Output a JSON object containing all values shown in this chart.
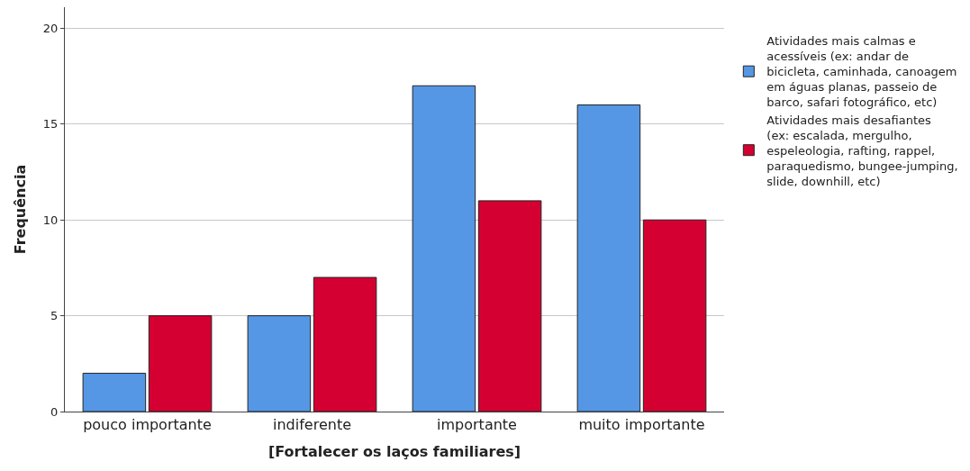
{
  "chart_data": {
    "type": "bar",
    "xlabel": "[Fortalecer os laços familiares]",
    "ylabel": "Frequência",
    "categories": [
      "pouco importante",
      "indiferente",
      "importante",
      "muito importante"
    ],
    "series": [
      {
        "name": "Atividades mais calmas e acessíveis (ex: andar de bicicleta, caminhada, canoagem em águas planas, passeio de barco, safari fotográfico, etc)",
        "color": "#5597e5",
        "values": [
          2,
          5,
          17,
          16
        ]
      },
      {
        "name": "Atividades mais desafiantes (ex: escalada, mergulho, espeleologia, rafting, rappel, paraquedismo, bungee-jumping, slide, downhill, etc)",
        "color": "#d50032",
        "values": [
          5,
          7,
          11,
          10
        ]
      }
    ],
    "ylim": [
      0,
      21.1
    ],
    "yticks": [
      0,
      5,
      10,
      15,
      20
    ],
    "grid": "y",
    "legend": "top right"
  }
}
